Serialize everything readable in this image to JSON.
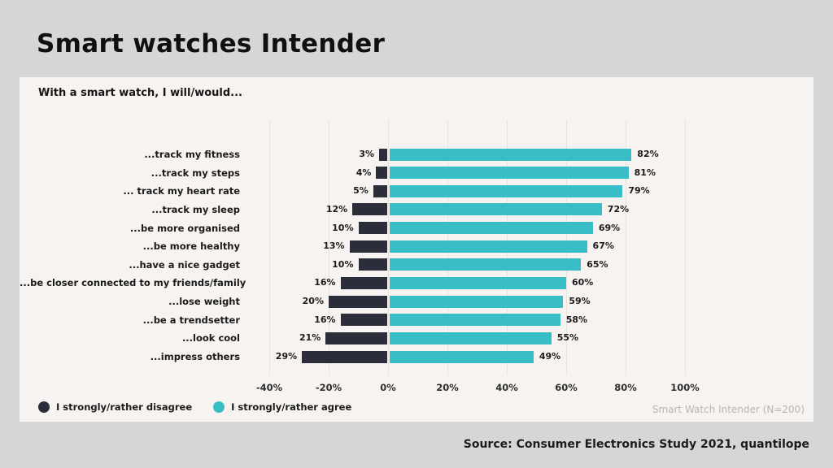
{
  "page": {
    "title": "Smart watches Intender",
    "source": "Source: Consumer Electronics Study 2021, quantilope"
  },
  "chart_data": {
    "type": "bar",
    "orientation": "horizontal-diverging",
    "title": "With a smart watch, I will/would...",
    "note": "Smart Watch Intender (N=200)",
    "categories": [
      "...track my fitness",
      "...track my steps",
      "... track my heart rate",
      "...track my sleep",
      "...be more organised",
      "...be more healthy",
      "...have a nice gadget",
      "...be closer connected to my friends/family",
      "...lose weight",
      "...be a trendsetter",
      "...look cool",
      "...impress others"
    ],
    "series": [
      {
        "name": "I strongly/rather disagree",
        "color": "#2b2e3a",
        "direction": "negative",
        "values": [
          3,
          4,
          5,
          12,
          10,
          13,
          10,
          16,
          20,
          16,
          21,
          29
        ],
        "labels": [
          "3%",
          "4%",
          "5%",
          "12%",
          "10%",
          "13%",
          "10%",
          "16%",
          "20%",
          "16%",
          "21%",
          "29%"
        ]
      },
      {
        "name": "I strongly/rather agree",
        "color": "#39bdc7",
        "direction": "positive",
        "values": [
          82,
          81,
          79,
          72,
          69,
          67,
          65,
          60,
          59,
          58,
          55,
          49
        ],
        "labels": [
          "82%",
          "81%",
          "79%",
          "72%",
          "69%",
          "67%",
          "65%",
          "60%",
          "59%",
          "58%",
          "55%",
          "49%"
        ]
      }
    ],
    "x_axis": {
      "min": -40,
      "max": 100,
      "tick_values": [
        -40,
        -20,
        0,
        20,
        40,
        60,
        80,
        100
      ],
      "tick_labels": [
        "-40%",
        "-20%",
        "0%",
        "20%",
        "40%",
        "60%",
        "80%",
        "100%"
      ]
    },
    "grid": true,
    "legend_position": "bottom-left",
    "colors": {
      "background": "#d6d6d6",
      "card": "#f7f3f0",
      "gridline": "#e7e3df",
      "disagree": "#2b2e3a",
      "agree": "#39bdc7",
      "note_text": "#b9b5b2"
    }
  }
}
